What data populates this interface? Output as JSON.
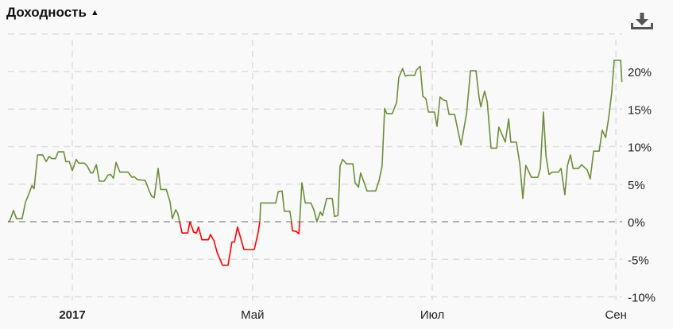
{
  "header": {
    "title": "Доходность",
    "sort_icon": "triangle-up-icon",
    "download_icon": "download-icon"
  },
  "chart_data": {
    "type": "line",
    "title": "Доходность",
    "xlabel": "",
    "ylabel": "",
    "x_unit": "trading session index",
    "ylim": [
      -10,
      25
    ],
    "xlim": [
      0,
      143.1
    ],
    "grid": true,
    "yticks": [
      {
        "value": 20,
        "label": "20%"
      },
      {
        "value": 15,
        "label": "15%"
      },
      {
        "value": 10,
        "label": "10%"
      },
      {
        "value": 5,
        "label": "5%"
      },
      {
        "value": 0,
        "label": "0%"
      },
      {
        "value": -5,
        "label": "-5%"
      },
      {
        "value": -10,
        "label": "-10%"
      }
    ],
    "xticks": [
      {
        "value": 15.0,
        "label": "2017",
        "bold": true
      },
      {
        "value": 57.0,
        "label": "Май",
        "bold": false
      },
      {
        "value": 98.9,
        "label": "Июл",
        "bold": false
      },
      {
        "value": 141.7,
        "label": "Сен",
        "bold": false
      }
    ],
    "colors": {
      "positive": "#6b8e3a",
      "negative": "#ff0000",
      "zero_line": "#999999",
      "grid": "#dddddd"
    },
    "points": [
      [
        0,
        0
      ],
      [
        0.4,
        0.1
      ],
      [
        1.3,
        1.5
      ],
      [
        2.0,
        0.4
      ],
      [
        3.3,
        0.4
      ],
      [
        4.1,
        2.6
      ],
      [
        4.8,
        3.6
      ],
      [
        5.6,
        4.8
      ],
      [
        6.1,
        4.4
      ],
      [
        6.9,
        8.9
      ],
      [
        8.1,
        8.9
      ],
      [
        8.9,
        8.0
      ],
      [
        9.6,
        8.7
      ],
      [
        10.2,
        8.4
      ],
      [
        11.1,
        8.4
      ],
      [
        11.7,
        9.3
      ],
      [
        13.0,
        9.3
      ],
      [
        13.5,
        8.0
      ],
      [
        14.3,
        8.0
      ],
      [
        15.0,
        6.8
      ],
      [
        15.9,
        8.3
      ],
      [
        16.5,
        7.8
      ],
      [
        17.8,
        7.8
      ],
      [
        18.5,
        7.4
      ],
      [
        19.3,
        6.5
      ],
      [
        19.8,
        6.5
      ],
      [
        20.6,
        7.6
      ],
      [
        21.3,
        5.4
      ],
      [
        22.4,
        5.4
      ],
      [
        23.3,
        6.2
      ],
      [
        23.9,
        6.3
      ],
      [
        24.6,
        5.8
      ],
      [
        25.2,
        7.9
      ],
      [
        26.1,
        6.6
      ],
      [
        28.0,
        6.6
      ],
      [
        28.9,
        5.9
      ],
      [
        29.4,
        6.0
      ],
      [
        30.2,
        5.6
      ],
      [
        32.0,
        5.5
      ],
      [
        33.0,
        4.0
      ],
      [
        33.5,
        3.4
      ],
      [
        34.1,
        3.2
      ],
      [
        35.0,
        7.1
      ],
      [
        35.6,
        4.3
      ],
      [
        36.9,
        4.3
      ],
      [
        37.8,
        2.6
      ],
      [
        38.3,
        0.4
      ],
      [
        39.1,
        1.6
      ],
      [
        39.6,
        1.1
      ],
      [
        40.0,
        0
      ],
      [
        40.6,
        -1.5
      ],
      [
        41.9,
        -1.5
      ],
      [
        42.4,
        0
      ],
      [
        43.3,
        -1.4
      ],
      [
        43.9,
        -1.5
      ],
      [
        44.4,
        -0.7
      ],
      [
        45.2,
        -2.4
      ],
      [
        46.7,
        -2.4
      ],
      [
        47.2,
        -1.7
      ],
      [
        48.0,
        -2.5
      ],
      [
        48.7,
        -4.0
      ],
      [
        50.0,
        -5.8
      ],
      [
        51.3,
        -5.8
      ],
      [
        52.2,
        -2.7
      ],
      [
        52.8,
        -2.7
      ],
      [
        53.5,
        -0.7
      ],
      [
        55.0,
        -3.7
      ],
      [
        57.4,
        -3.7
      ],
      [
        58.3,
        -1.5
      ],
      [
        58.7,
        0
      ],
      [
        58.9,
        2.5
      ],
      [
        62.4,
        2.5
      ],
      [
        63.0,
        4.0
      ],
      [
        63.9,
        4.1
      ],
      [
        64.4,
        1.4
      ],
      [
        65.7,
        1.4
      ],
      [
        66.1,
        0
      ],
      [
        66.3,
        -1.2
      ],
      [
        67.2,
        -1.3
      ],
      [
        67.8,
        -1.6
      ],
      [
        68.0,
        0
      ],
      [
        68.5,
        5.2
      ],
      [
        69.3,
        2.5
      ],
      [
        70.6,
        2.5
      ],
      [
        71.3,
        1.6
      ],
      [
        72.0,
        0
      ],
      [
        72.8,
        1.3
      ],
      [
        73.3,
        0.8
      ],
      [
        74.3,
        3.1
      ],
      [
        75.6,
        3.1
      ],
      [
        76.1,
        0.7
      ],
      [
        76.9,
        0.8
      ],
      [
        77.4,
        7.4
      ],
      [
        78.0,
        8.3
      ],
      [
        78.9,
        7.7
      ],
      [
        80.4,
        7.7
      ],
      [
        80.9,
        5.2
      ],
      [
        81.7,
        4.6
      ],
      [
        82.2,
        6.5
      ],
      [
        83.7,
        4.1
      ],
      [
        85.7,
        4.1
      ],
      [
        86.5,
        5.5
      ],
      [
        87.2,
        7.4
      ],
      [
        87.8,
        15.1
      ],
      [
        88.3,
        14.4
      ],
      [
        89.6,
        14.4
      ],
      [
        90.6,
        15.9
      ],
      [
        91.1,
        19.2
      ],
      [
        92.0,
        20.4
      ],
      [
        92.6,
        19.4
      ],
      [
        93.3,
        19.5
      ],
      [
        94.8,
        19.5
      ],
      [
        95.2,
        20.2
      ],
      [
        96.1,
        20.7
      ],
      [
        96.7,
        16.7
      ],
      [
        97.4,
        16.4
      ],
      [
        98.0,
        14.6
      ],
      [
        99.4,
        14.6
      ],
      [
        100.0,
        12.7
      ],
      [
        100.7,
        16.6
      ],
      [
        101.5,
        16.2
      ],
      [
        102.2,
        16.1
      ],
      [
        102.8,
        14.3
      ],
      [
        104.1,
        14.3
      ],
      [
        105.6,
        10.2
      ],
      [
        106.9,
        14.5
      ],
      [
        107.8,
        20.1
      ],
      [
        109.1,
        20.1
      ],
      [
        109.8,
        16.6
      ],
      [
        110.2,
        15.3
      ],
      [
        111.1,
        17.4
      ],
      [
        111.7,
        16.0
      ],
      [
        112.6,
        9.8
      ],
      [
        113.9,
        9.8
      ],
      [
        114.4,
        12.6
      ],
      [
        115.9,
        10.6
      ],
      [
        116.7,
        13.7
      ],
      [
        117.2,
        10.6
      ],
      [
        118.5,
        10.6
      ],
      [
        119.3,
        7.7
      ],
      [
        120.0,
        3.1
      ],
      [
        120.7,
        7.5
      ],
      [
        122.0,
        5.9
      ],
      [
        123.5,
        5.9
      ],
      [
        124.1,
        7.1
      ],
      [
        124.8,
        14.6
      ],
      [
        125.4,
        8.7
      ],
      [
        126.1,
        6.3
      ],
      [
        126.9,
        6.6
      ],
      [
        128.3,
        6.6
      ],
      [
        128.9,
        7.1
      ],
      [
        129.8,
        3.6
      ],
      [
        130.4,
        7.5
      ],
      [
        131.1,
        8.9
      ],
      [
        131.7,
        7.1
      ],
      [
        133.0,
        7.1
      ],
      [
        133.7,
        7.6
      ],
      [
        135.0,
        6.9
      ],
      [
        135.7,
        5.7
      ],
      [
        136.5,
        9.4
      ],
      [
        137.8,
        9.4
      ],
      [
        138.5,
        12.2
      ],
      [
        139.3,
        11.2
      ],
      [
        140.0,
        13.8
      ],
      [
        140.7,
        17.1
      ],
      [
        141.3,
        21.5
      ],
      [
        142.8,
        21.5
      ],
      [
        143.1,
        18.6
      ]
    ]
  }
}
